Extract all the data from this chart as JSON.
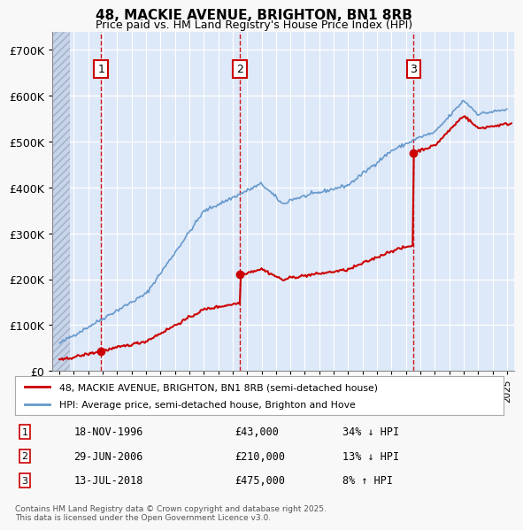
{
  "title_line1": "48, MACKIE AVENUE, BRIGHTON, BN1 8RB",
  "title_line2": "Price paid vs. HM Land Registry's House Price Index (HPI)",
  "ylabel": "",
  "background_color": "#f0f4ff",
  "plot_bg_color": "#dde8f8",
  "hatch_color": "#c0cce0",
  "grid_color": "#ffffff",
  "hpi_color": "#6699cc",
  "price_color": "#cc0000",
  "sale_marker_color": "#cc0000",
  "legend_label_price": "48, MACKIE AVENUE, BRIGHTON, BN1 8RB (semi-detached house)",
  "legend_label_hpi": "HPI: Average price, semi-detached house, Brighton and Hove",
  "footnote": "Contains HM Land Registry data © Crown copyright and database right 2025.\nThis data is licensed under the Open Government Licence v3.0.",
  "sale_points": [
    {
      "num": 1,
      "date_x": 1996.88,
      "price": 43000,
      "label": "18-NOV-1996",
      "amount": "£43,000",
      "pct": "34% ↓ HPI"
    },
    {
      "num": 2,
      "date_x": 2006.49,
      "price": 210000,
      "label": "29-JUN-2006",
      "amount": "£210,000",
      "pct": "13% ↓ HPI"
    },
    {
      "num": 3,
      "date_x": 2018.53,
      "price": 475000,
      "label": "13-JUL-2018",
      "amount": "£475,000",
      "pct": "8% ↑ HPI"
    }
  ],
  "xmin": 1993.5,
  "xmax": 2025.5,
  "ymin": 0,
  "ymax": 740000,
  "yticks": [
    0,
    100000,
    200000,
    300000,
    400000,
    500000,
    600000,
    700000
  ],
  "ytick_labels": [
    "£0",
    "£100K",
    "£200K",
    "£300K",
    "£400K",
    "£500K",
    "£600K",
    "£700K"
  ]
}
